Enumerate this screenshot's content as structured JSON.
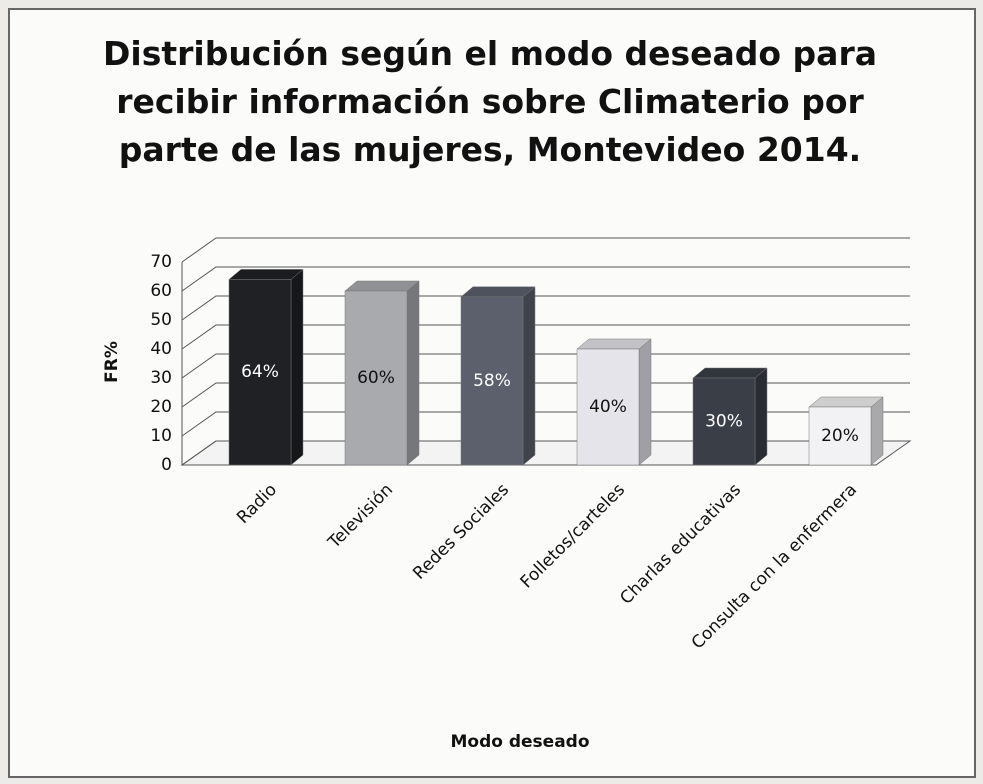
{
  "chart_data": {
    "type": "bar3d",
    "title": "Distribución según el modo deseado para recibir información sobre Climaterio por parte de las mujeres, Montevideo 2014.",
    "categories": [
      "Radio",
      "Televisión",
      "Redes Sociales",
      "Folletos/carteles",
      "Charlas educativas",
      "Consulta con la enfermera"
    ],
    "values": [
      64,
      60,
      58,
      40,
      30,
      20
    ],
    "value_labels": [
      "64%",
      "60%",
      "58%",
      "40%",
      "30%",
      "20%"
    ],
    "colors": [
      "#1f2124",
      "#a9aaae",
      "#5b606c",
      "#e4e4ea",
      "#3a3f47",
      "#f2f2f4"
    ],
    "ylim": [
      0,
      70
    ],
    "yticks": [
      0,
      10,
      20,
      30,
      40,
      50,
      60,
      70
    ],
    "ylabel": "FR%",
    "xlabel": "Modo deseado",
    "grid": true
  }
}
